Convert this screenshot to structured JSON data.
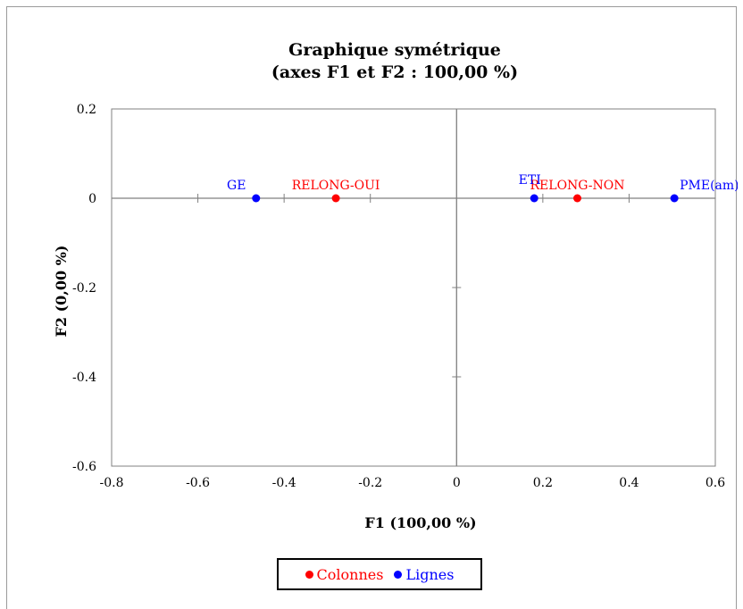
{
  "chart_data": {
    "type": "scatter",
    "title": "Graphique symétrique",
    "subtitle": "(axes F1 et F2 : 100,00 %)",
    "xlabel": "F1 (100,00 %)",
    "ylabel": "F2 (0,00 %)",
    "xlim": [
      -0.8,
      0.6
    ],
    "ylim": [
      -0.6,
      0.2
    ],
    "xticks": [
      "-0.8",
      "-0.6",
      "-0.4",
      "-0.2",
      "0",
      "0.2",
      "0.4",
      "0.6"
    ],
    "yticks": [
      "0.2",
      "0",
      "-0.2",
      "-0.4",
      "-0.6"
    ],
    "grid": false,
    "legend_position": "bottom",
    "series": [
      {
        "name": "Colonnes",
        "color": "#ff0000",
        "points": [
          {
            "label": "RELONG-OUI",
            "x": -0.28,
            "y": 0
          },
          {
            "label": "RELONG-NON",
            "x": 0.28,
            "y": 0
          }
        ]
      },
      {
        "name": "Lignes",
        "color": "#0000ff",
        "points": [
          {
            "label": "GE",
            "x": -0.465,
            "y": 0
          },
          {
            "label": "ETI",
            "x": 0.18,
            "y": 0
          },
          {
            "label": "PME(am)",
            "x": 0.505,
            "y": 0
          }
        ]
      }
    ]
  }
}
